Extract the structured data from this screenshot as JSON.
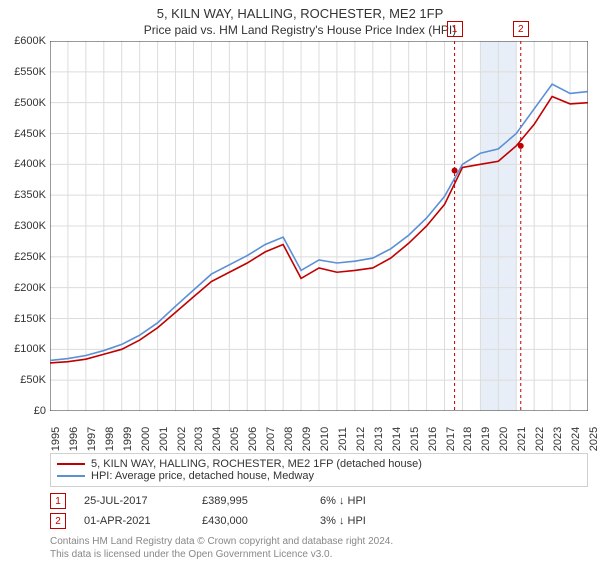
{
  "title": "5, KILN WAY, HALLING, ROCHESTER, ME2 1FP",
  "subtitle": "Price paid vs. HM Land Registry's House Price Index (HPI)",
  "chart": {
    "type": "line",
    "background_color": "#ffffff",
    "grid_color": "#dcdcdc",
    "axis_color": "#333333",
    "y_axis": {
      "min": 0,
      "max": 600000,
      "step": 50000,
      "labels": [
        "£0",
        "£50K",
        "£100K",
        "£150K",
        "£200K",
        "£250K",
        "£300K",
        "£350K",
        "£400K",
        "£450K",
        "£500K",
        "£550K",
        "£600K"
      ],
      "label_fontsize": 11
    },
    "x_axis": {
      "years": [
        1995,
        1996,
        1997,
        1998,
        1999,
        2000,
        2001,
        2002,
        2003,
        2004,
        2005,
        2006,
        2007,
        2008,
        2009,
        2010,
        2011,
        2012,
        2013,
        2014,
        2015,
        2016,
        2017,
        2018,
        2019,
        2020,
        2021,
        2022,
        2023,
        2024,
        2025
      ],
      "label_fontsize": 11
    },
    "series": [
      {
        "name": "price_paid",
        "label": "5, KILN WAY, HALLING, ROCHESTER, ME2 1FP (detached house)",
        "color": "#c00000",
        "line_width": 1.6,
        "data": [
          78000,
          80000,
          84000,
          92000,
          100000,
          115000,
          135000,
          160000,
          185000,
          210000,
          225000,
          240000,
          258000,
          270000,
          215000,
          232000,
          225000,
          228000,
          232000,
          248000,
          272000,
          300000,
          335000,
          395000,
          400000,
          405000,
          430000,
          465000,
          510000,
          498000,
          500000
        ]
      },
      {
        "name": "hpi",
        "label": "HPI: Average price, detached house, Medway",
        "color": "#5b8fd6",
        "line_width": 1.6,
        "data": [
          82000,
          85000,
          90000,
          98000,
          108000,
          123000,
          143000,
          170000,
          196000,
          222000,
          237000,
          252000,
          270000,
          282000,
          228000,
          245000,
          240000,
          243000,
          248000,
          263000,
          285000,
          313000,
          348000,
          400000,
          418000,
          425000,
          450000,
          490000,
          530000,
          515000,
          518000
        ]
      }
    ],
    "highlight_band": {
      "from_year": 2019,
      "to_year": 2021,
      "fill": "#e8eef7"
    },
    "markers": [
      {
        "id": "1",
        "year": 2017.56,
        "value": 389995,
        "dash_color": "#c00000"
      },
      {
        "id": "2",
        "year": 2021.25,
        "value": 430000,
        "dash_color": "#c00000"
      }
    ],
    "marker_box": {
      "border_color": "#c00000",
      "text_color": "#c00000",
      "fontsize": 10
    }
  },
  "legend": {
    "rows": [
      {
        "color": "#c00000",
        "text": "5, KILN WAY, HALLING, ROCHESTER, ME2 1FP (detached house)"
      },
      {
        "color": "#5b8fd6",
        "text": "HPI: Average price, detached house, Medway"
      }
    ]
  },
  "sales": [
    {
      "id": "1",
      "date": "25-JUL-2017",
      "price": "£389,995",
      "delta": "6% ↓ HPI"
    },
    {
      "id": "2",
      "date": "01-APR-2021",
      "price": "£430,000",
      "delta": "3% ↓ HPI"
    }
  ],
  "footer": {
    "line1": "Contains HM Land Registry data © Crown copyright and database right 2024.",
    "line2": "This data is licensed under the Open Government Licence v3.0."
  }
}
